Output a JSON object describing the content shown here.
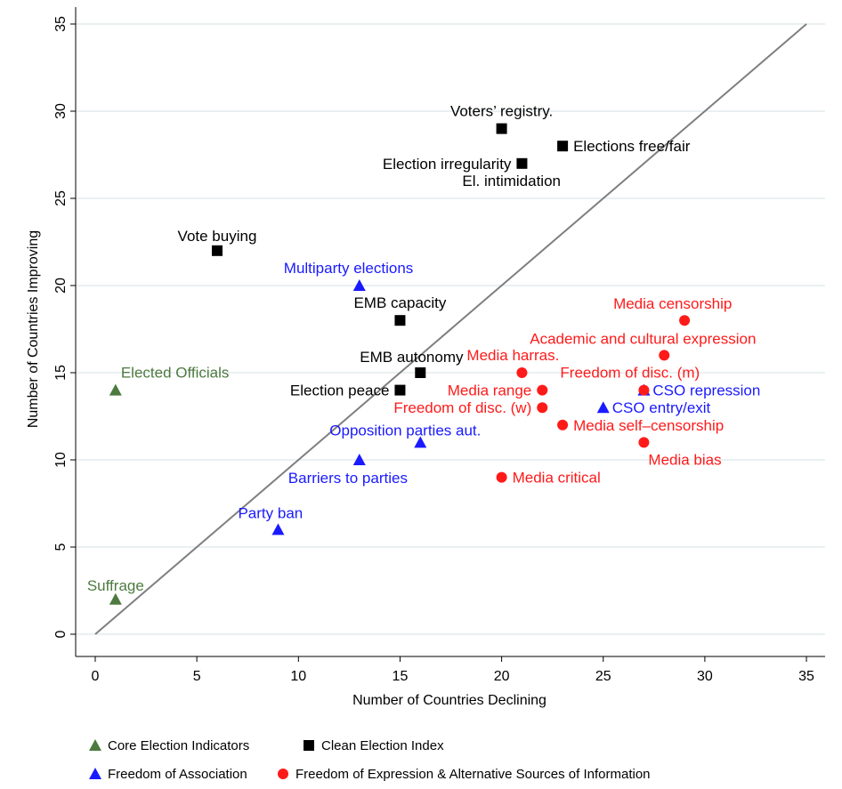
{
  "chart_data": {
    "type": "scatter",
    "xlabel": "Number of Countries Declining",
    "ylabel": "Number of Countries Improving",
    "xlim": [
      0,
      35
    ],
    "ylim": [
      0,
      35
    ],
    "xticks": [
      0,
      5,
      10,
      15,
      20,
      25,
      30,
      35
    ],
    "yticks": [
      0,
      5,
      10,
      15,
      20,
      25,
      30,
      35
    ],
    "grid": "horizontal",
    "diagonal_line": {
      "from": [
        0,
        0
      ],
      "to": [
        35,
        35
      ],
      "color": "#7f7f7f"
    },
    "legend_position": "bottom",
    "series": [
      {
        "name": "Core Election Indicators",
        "marker": "triangle",
        "color": "#4d7a3f",
        "points": [
          {
            "label": "Elected Officials",
            "x": 1,
            "y": 14
          },
          {
            "label": "Suffrage",
            "x": 1,
            "y": 2
          }
        ]
      },
      {
        "name": "Clean Election Index",
        "marker": "square",
        "color": "#000000",
        "points": [
          {
            "label": "Voters’ registry.",
            "x": 20,
            "y": 29
          },
          {
            "label": "Elections free/fair",
            "x": 23,
            "y": 28
          },
          {
            "label": "Election irregularity",
            "x": 21,
            "y": 27
          },
          {
            "label": "El. intimidation",
            "x": 21,
            "y": 27
          },
          {
            "label": "Vote buying",
            "x": 6,
            "y": 22
          },
          {
            "label": "EMB capacity",
            "x": 15,
            "y": 18
          },
          {
            "label": "EMB autonomy",
            "x": 16,
            "y": 15
          },
          {
            "label": "Election peace",
            "x": 15,
            "y": 14
          }
        ]
      },
      {
        "name": "Freedom of Association",
        "marker": "triangle",
        "color": "#1a1aff",
        "points": [
          {
            "label": "Multiparty elections",
            "x": 13,
            "y": 20
          },
          {
            "label": "CSO entry/exit",
            "x": 25,
            "y": 13
          },
          {
            "label": "CSO repression",
            "x": 27,
            "y": 14
          },
          {
            "label": "Opposition parties aut.",
            "x": 16,
            "y": 11
          },
          {
            "label": "Barriers to parties",
            "x": 13,
            "y": 10
          },
          {
            "label": "Party ban",
            "x": 9,
            "y": 6
          }
        ]
      },
      {
        "name": "Freedom of Expression & Alternative Sources of Information",
        "marker": "circle",
        "color": "#ff1a1a",
        "points": [
          {
            "label": "Media censorship",
            "x": 29,
            "y": 18
          },
          {
            "label": "Academic and cultural expression",
            "x": 28,
            "y": 16
          },
          {
            "label": "Media harras.",
            "x": 21,
            "y": 15
          },
          {
            "label": "Freedom of disc. (m)",
            "x": 27,
            "y": 14
          },
          {
            "label": "Media range",
            "x": 22,
            "y": 14
          },
          {
            "label": "Freedom of disc. (w)",
            "x": 22,
            "y": 13
          },
          {
            "label": "Media self–censorship",
            "x": 23,
            "y": 12
          },
          {
            "label": "Media bias",
            "x": 27,
            "y": 11
          },
          {
            "label": "Media critical",
            "x": 20,
            "y": 9
          }
        ]
      }
    ]
  }
}
